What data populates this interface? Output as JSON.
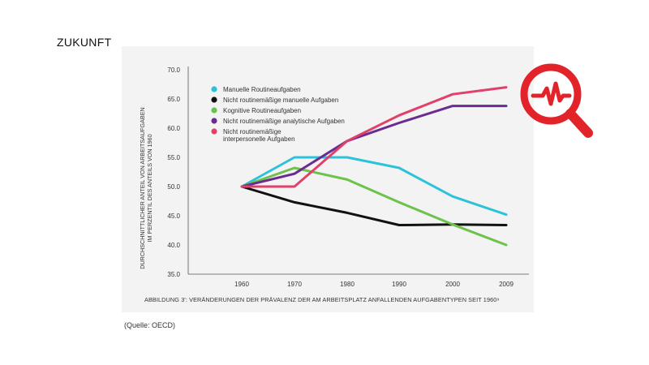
{
  "slide": {
    "title": "ZUKUNFT",
    "source": "(Quelle: OECD)"
  },
  "icon": {
    "name": "magnifier-pulse-icon",
    "color": "#e2232a"
  },
  "chart_data": {
    "type": "line",
    "x": [
      1960,
      1970,
      1980,
      1990,
      2000,
      2009
    ],
    "ylim": [
      35.0,
      70.0
    ],
    "yticks": [
      "35.0",
      "40.0",
      "45.0",
      "50.0",
      "55.0",
      "60.0",
      "65.0",
      "70.0"
    ],
    "xticks": [
      "1960",
      "1970",
      "1980",
      "1990",
      "2000",
      "2009"
    ],
    "ylabel_line1": "DURCHSCHNITTLICHER ANTEIL VON ARBEITSAUFGABEN",
    "ylabel_line2": "IM PERZENTIL DES ANTEILS VON 1960",
    "caption": "ABBILDUNG 3': VERÄNDERUNGEN DER PRÄVALENZ DER AM ARBEITSPLATZ ANFALLENDEN AUFGABENTYPEN SEIT 1960⁹",
    "legend_position": "top-left",
    "series": [
      {
        "name": "Manuelle Routineaufgaben",
        "name_lines": [
          "Manuelle Routineaufgaben"
        ],
        "color": "#2cc3da",
        "values": [
          50.0,
          55.0,
          55.0,
          53.2,
          48.3,
          45.2
        ]
      },
      {
        "name": "Nicht routinemäßige manuelle Aufgaben",
        "name_lines": [
          "Nicht routinemäßige manuelle Aufgaben"
        ],
        "color": "#111111",
        "values": [
          50.0,
          47.3,
          45.5,
          43.4,
          43.5,
          43.4
        ]
      },
      {
        "name": "Kognitive Routineaufgaben",
        "name_lines": [
          "Kognitive Routineaufgaben"
        ],
        "color": "#6cc24a",
        "values": [
          50.0,
          53.2,
          51.2,
          47.3,
          43.5,
          40.0
        ]
      },
      {
        "name": "Nicht routinemäßige analytische Aufgaben",
        "name_lines": [
          "Nicht routinemäßige analytische Aufgaben"
        ],
        "color": "#6a2c91",
        "values": [
          50.0,
          52.2,
          57.8,
          60.9,
          63.8,
          63.8
        ]
      },
      {
        "name": "Nicht routinemäßige interpersonelle Aufgaben",
        "name_lines": [
          "Nicht routinemäßige",
          "interpersonelle Aufgaben"
        ],
        "color": "#e0406a",
        "values": [
          50.0,
          50.0,
          57.8,
          62.2,
          65.8,
          67.0
        ]
      }
    ]
  }
}
